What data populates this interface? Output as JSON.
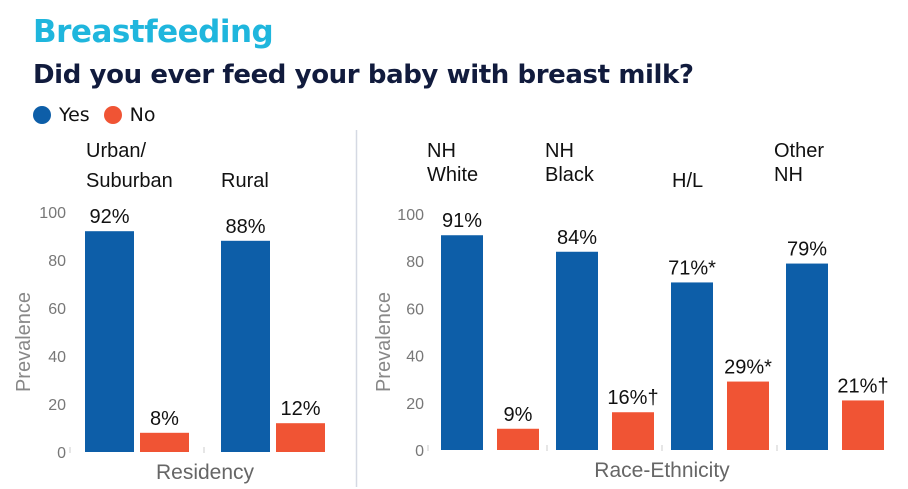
{
  "header": {
    "title": "Breastfeeding",
    "subtitle": "Did you ever feed your baby with breast milk?"
  },
  "legend": [
    {
      "label": "Yes",
      "color": "#0d5ea8"
    },
    {
      "label": "No",
      "color": "#f05434"
    }
  ],
  "chart_data": [
    {
      "type": "bar",
      "title": "Residency",
      "xlabel": "Residency",
      "ylabel": "Prevalence",
      "ylim": [
        0,
        100
      ],
      "yticks": [
        0,
        20,
        40,
        60,
        80,
        100
      ],
      "categories": [
        [
          "Urban/",
          "Suburban"
        ],
        [
          "Rural"
        ]
      ],
      "series": [
        {
          "name": "Yes",
          "color": "#0d5ea8",
          "values": [
            92,
            88
          ],
          "labels": [
            "92%",
            "88%"
          ]
        },
        {
          "name": "No",
          "color": "#f05434",
          "values": [
            8,
            12
          ],
          "labels": [
            "8%",
            "12%"
          ]
        }
      ]
    },
    {
      "type": "bar",
      "title": "Race-Ethnicity",
      "xlabel": "Race-Ethnicity",
      "ylabel": "Prevalence",
      "ylim": [
        0,
        100
      ],
      "yticks": [
        0,
        20,
        40,
        60,
        80,
        100
      ],
      "categories": [
        [
          "NH",
          "White"
        ],
        [
          "NH",
          "Black"
        ],
        [
          "H/L"
        ],
        [
          "Other",
          "NH"
        ]
      ],
      "series": [
        {
          "name": "Yes",
          "color": "#0d5ea8",
          "values": [
            91,
            84,
            71,
            79
          ],
          "labels": [
            "91%",
            "84%",
            "71%*",
            "79%"
          ]
        },
        {
          "name": "No",
          "color": "#f05434",
          "values": [
            9,
            16,
            29,
            21
          ],
          "labels": [
            "9%",
            "16%†",
            "29%*",
            "21%†"
          ]
        }
      ]
    }
  ]
}
